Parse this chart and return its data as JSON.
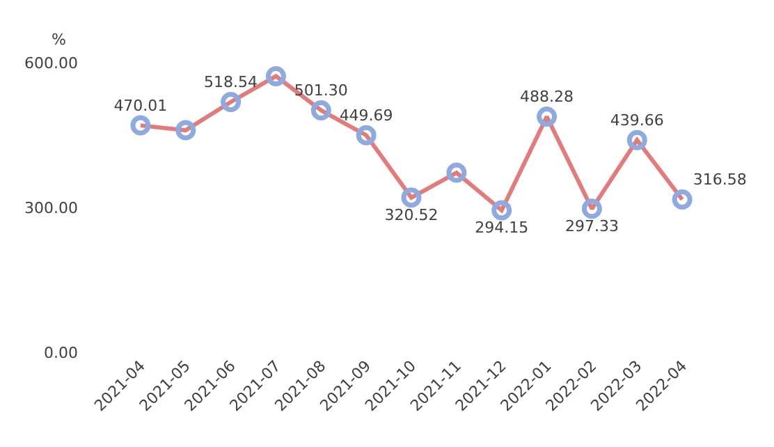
{
  "chart_data": {
    "type": "line",
    "ylabel": "%",
    "categories": [
      "2021-04",
      "2021-05",
      "2021-06",
      "2021-07",
      "2021-08",
      "2021-09",
      "2021-10",
      "2021-11",
      "2021-12",
      "2022-01",
      "2022-02",
      "2022-03",
      "2022-04"
    ],
    "series": [
      {
        "color": "#e07c7c",
        "colors": [
          "#8eaadf",
          "#8eaadf",
          "#8eaadf",
          "#8eaadf",
          "#8eaadf",
          "#8eaadf",
          "#8eaadf",
          "#8eaadf",
          "#8eaadf",
          "#8eaadf",
          "#8eaadf",
          "#8eaadf",
          "#8eaadf"
        ],
        "values": [
          470.01,
          460,
          518.54,
          572,
          501.3,
          449.69,
          320.52,
          372,
          294.15,
          488.28,
          297.33,
          439.66,
          316.58
        ],
        "value_labels": [
          "470.01",
          null,
          "518.54",
          null,
          "501.30",
          "449.69",
          "320.52",
          null,
          "294.15",
          "488.28",
          "297.33",
          "439.66",
          "316.58"
        ]
      }
    ],
    "ylim": [
      0,
      600
    ],
    "yticks": [
      {
        "value": 0,
        "label": "0.00"
      },
      {
        "value": 300,
        "label": "300.00"
      },
      {
        "value": 600,
        "label": "600.00"
      }
    ],
    "marker": "circle",
    "line_style": "solid"
  }
}
